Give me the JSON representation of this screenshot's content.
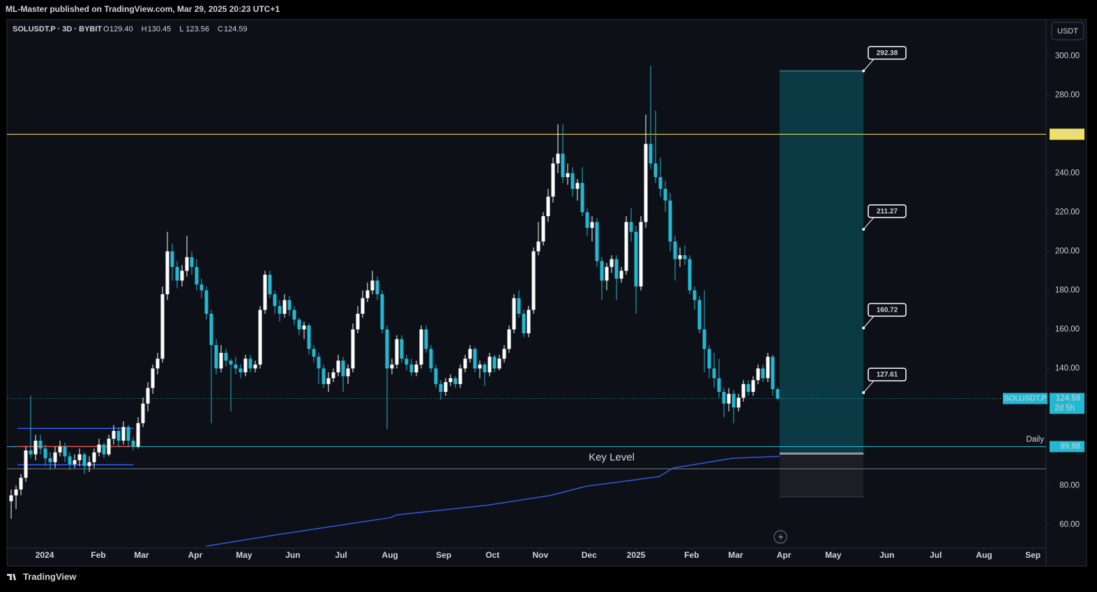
{
  "header": {
    "published": "ML-Master published on TradingView.com, Mar 29, 2025 20:23 UTC+1"
  },
  "footer": {
    "brand": "TradingView"
  },
  "chart_data": {
    "type": "candlestick",
    "symbol": "SOLUSDT.P · 3D · BYBIT",
    "currency": "USDT",
    "ohlc_legend": {
      "names": [
        "O",
        "H",
        "L",
        "C"
      ],
      "values": [
        129.4,
        130.45,
        123.56,
        124.59
      ],
      "value_labels": [
        "129.40",
        "130.45",
        "123.56",
        "124.59"
      ]
    },
    "up_color": "#ffffff",
    "down_color": "#22b8d1",
    "candles": [
      [
        72,
        78,
        63,
        75
      ],
      [
        75,
        80,
        68,
        78
      ],
      [
        78,
        86,
        75,
        84
      ],
      [
        84,
        100,
        82,
        98
      ],
      [
        98,
        126,
        94,
        96
      ],
      [
        96,
        106,
        93,
        103
      ],
      [
        103,
        106,
        96,
        99
      ],
      [
        99,
        101,
        90,
        94
      ],
      [
        94,
        97,
        88,
        92
      ],
      [
        92,
        100,
        89,
        97
      ],
      [
        97,
        103,
        95,
        100
      ],
      [
        100,
        102,
        92,
        95
      ],
      [
        95,
        97,
        88,
        91
      ],
      [
        91,
        96,
        89,
        93
      ],
      [
        93,
        99,
        90,
        96
      ],
      [
        96,
        97,
        86,
        90
      ],
      [
        90,
        95,
        87,
        92
      ],
      [
        92,
        99,
        89,
        97
      ],
      [
        97,
        104,
        95,
        101
      ],
      [
        101,
        102,
        94,
        96
      ],
      [
        96,
        106,
        95,
        104
      ],
      [
        104,
        111,
        101,
        108
      ],
      [
        108,
        110,
        100,
        103
      ],
      [
        103,
        113,
        101,
        110
      ],
      [
        110,
        111,
        100,
        103
      ],
      [
        103,
        105,
        98,
        100
      ],
      [
        100,
        115,
        99,
        112
      ],
      [
        112,
        125,
        110,
        122
      ],
      [
        122,
        133,
        118,
        130
      ],
      [
        130,
        142,
        127,
        140
      ],
      [
        140,
        148,
        137,
        145
      ],
      [
        145,
        182,
        143,
        178
      ],
      [
        178,
        210,
        175,
        200
      ],
      [
        200,
        204,
        185,
        192
      ],
      [
        192,
        195,
        181,
        185
      ],
      [
        185,
        193,
        182,
        190
      ],
      [
        190,
        208,
        187,
        197
      ],
      [
        197,
        200,
        188,
        192
      ],
      [
        192,
        196,
        180,
        183
      ],
      [
        183,
        186,
        176,
        180
      ],
      [
        180,
        182,
        165,
        168
      ],
      [
        168,
        170,
        112,
        152
      ],
      [
        152,
        155,
        137,
        140
      ],
      [
        140,
        152,
        138,
        148
      ],
      [
        148,
        150,
        141,
        144
      ],
      [
        144,
        145,
        118,
        142
      ],
      [
        142,
        146,
        137,
        140
      ],
      [
        140,
        142,
        135,
        138
      ],
      [
        138,
        147,
        136,
        145
      ],
      [
        145,
        147,
        138,
        140
      ],
      [
        140,
        144,
        138,
        142
      ],
      [
        142,
        172,
        140,
        170
      ],
      [
        170,
        190,
        168,
        188
      ],
      [
        188,
        190,
        176,
        178
      ],
      [
        178,
        180,
        168,
        172
      ],
      [
        172,
        175,
        164,
        168
      ],
      [
        168,
        178,
        166,
        175
      ],
      [
        175,
        177,
        167,
        170
      ],
      [
        170,
        172,
        162,
        165
      ],
      [
        165,
        166,
        157,
        160
      ],
      [
        160,
        164,
        155,
        162
      ],
      [
        162,
        163,
        147,
        150
      ],
      [
        150,
        152,
        143,
        146
      ],
      [
        146,
        148,
        132,
        140
      ],
      [
        140,
        142,
        130,
        132
      ],
      [
        132,
        138,
        128,
        135
      ],
      [
        135,
        140,
        133,
        138
      ],
      [
        138,
        147,
        136,
        144
      ],
      [
        144,
        146,
        128,
        136
      ],
      [
        136,
        142,
        132,
        140
      ],
      [
        140,
        163,
        138,
        160
      ],
      [
        160,
        172,
        158,
        168
      ],
      [
        168,
        180,
        166,
        176
      ],
      [
        176,
        184,
        174,
        180
      ],
      [
        180,
        190,
        178,
        185
      ],
      [
        185,
        187,
        175,
        178
      ],
      [
        178,
        180,
        158,
        160
      ],
      [
        160,
        162,
        109,
        140
      ],
      [
        140,
        145,
        137,
        142
      ],
      [
        142,
        157,
        140,
        155
      ],
      [
        155,
        157,
        143,
        145
      ],
      [
        145,
        147,
        139,
        142
      ],
      [
        142,
        145,
        136,
        138
      ],
      [
        138,
        144,
        136,
        142
      ],
      [
        142,
        162,
        140,
        160
      ],
      [
        160,
        162,
        148,
        150
      ],
      [
        150,
        152,
        138,
        140
      ],
      [
        140,
        142,
        130,
        132
      ],
      [
        132,
        134,
        124,
        128
      ],
      [
        128,
        135,
        126,
        133
      ],
      [
        133,
        137,
        131,
        135
      ],
      [
        135,
        136,
        130,
        132
      ],
      [
        132,
        142,
        130,
        140
      ],
      [
        140,
        147,
        138,
        145
      ],
      [
        145,
        152,
        143,
        150
      ],
      [
        150,
        151,
        138,
        140
      ],
      [
        140,
        144,
        135,
        142
      ],
      [
        142,
        143,
        131,
        138
      ],
      [
        138,
        148,
        136,
        146
      ],
      [
        146,
        147,
        138,
        140
      ],
      [
        140,
        147,
        139,
        145
      ],
      [
        145,
        152,
        143,
        150
      ],
      [
        150,
        162,
        148,
        160
      ],
      [
        160,
        178,
        158,
        176
      ],
      [
        176,
        180,
        166,
        168
      ],
      [
        168,
        170,
        156,
        158
      ],
      [
        158,
        172,
        156,
        170
      ],
      [
        170,
        202,
        168,
        200
      ],
      [
        200,
        215,
        198,
        205
      ],
      [
        205,
        220,
        203,
        218
      ],
      [
        218,
        232,
        215,
        228
      ],
      [
        228,
        248,
        225,
        245
      ],
      [
        245,
        265,
        240,
        250
      ],
      [
        250,
        265,
        235,
        238
      ],
      [
        238,
        245,
        234,
        240
      ],
      [
        240,
        243,
        228,
        232
      ],
      [
        232,
        237,
        226,
        235
      ],
      [
        235,
        243,
        218,
        220
      ],
      [
        220,
        222,
        208,
        212
      ],
      [
        212,
        218,
        205,
        215
      ],
      [
        215,
        217,
        192,
        195
      ],
      [
        195,
        197,
        175,
        185
      ],
      [
        185,
        194,
        180,
        192
      ],
      [
        192,
        198,
        189,
        196
      ],
      [
        196,
        198,
        175,
        186
      ],
      [
        186,
        192,
        184,
        190
      ],
      [
        190,
        218,
        188,
        215
      ],
      [
        215,
        222,
        205,
        210
      ],
      [
        210,
        213,
        168,
        182
      ],
      [
        182,
        218,
        180,
        215
      ],
      [
        215,
        270,
        212,
        255
      ],
      [
        255,
        295,
        242,
        245
      ],
      [
        245,
        272,
        235,
        238
      ],
      [
        238,
        248,
        228,
        232
      ],
      [
        232,
        236,
        220,
        226
      ],
      [
        226,
        230,
        200,
        205
      ],
      [
        205,
        208,
        185,
        196
      ],
      [
        196,
        202,
        192,
        198
      ],
      [
        198,
        203,
        193,
        196
      ],
      [
        196,
        198,
        178,
        180
      ],
      [
        180,
        182,
        170,
        175
      ],
      [
        175,
        177,
        158,
        160
      ],
      [
        160,
        180,
        138,
        150
      ],
      [
        150,
        152,
        135,
        140
      ],
      [
        140,
        148,
        130,
        135
      ],
      [
        135,
        145,
        125,
        128
      ],
      [
        128,
        130,
        115,
        122
      ],
      [
        122,
        130,
        118,
        127
      ],
      [
        127,
        129,
        112,
        120
      ],
      [
        120,
        127,
        118,
        125
      ],
      [
        125,
        134,
        123,
        132
      ],
      [
        132,
        134,
        126,
        128
      ],
      [
        128,
        136,
        126,
        134
      ],
      [
        134,
        142,
        132,
        140
      ],
      [
        140,
        142,
        133,
        135
      ],
      [
        135,
        148,
        133,
        146
      ],
      [
        146,
        147,
        126,
        129.4
      ],
      [
        129.4,
        130.45,
        123.56,
        124.59
      ]
    ],
    "xlim": [
      -0.86,
      212
    ],
    "xticks": [
      {
        "value": 6.86,
        "label": "2024"
      },
      {
        "value": 17.86,
        "label": "Feb"
      },
      {
        "value": 26.7,
        "label": "Mar"
      },
      {
        "value": 37.7,
        "label": "Apr"
      },
      {
        "value": 47.7,
        "label": "May"
      },
      {
        "value": 57.7,
        "label": "Jun"
      },
      {
        "value": 67.6,
        "label": "Jul"
      },
      {
        "value": 77.6,
        "label": "Aug"
      },
      {
        "value": 88.6,
        "label": "Sep"
      },
      {
        "value": 98.6,
        "label": "Oct"
      },
      {
        "value": 108.4,
        "label": "Nov"
      },
      {
        "value": 118.4,
        "label": "Dec"
      },
      {
        "value": 128,
        "label": "2025"
      },
      {
        "value": 139.4,
        "label": "Feb"
      },
      {
        "value": 148.4,
        "label": "Mar"
      },
      {
        "value": 158.3,
        "label": "Apr"
      },
      {
        "value": 168.4,
        "label": "May"
      },
      {
        "value": 179.4,
        "label": "Jun"
      },
      {
        "value": 189.4,
        "label": "Jul"
      },
      {
        "value": 199.3,
        "label": "Aug"
      },
      {
        "value": 209.3,
        "label": "Sep"
      }
    ],
    "ylim": [
      48,
      318
    ],
    "yticks": [
      {
        "value": 60,
        "label": "60.00"
      },
      {
        "value": 80,
        "label": "80.00"
      },
      {
        "value": 140,
        "label": "140.00"
      },
      {
        "value": 160,
        "label": "160.00"
      },
      {
        "value": 180,
        "label": "180.00"
      },
      {
        "value": 200,
        "label": "200.00"
      },
      {
        "value": 220,
        "label": "220.00"
      },
      {
        "value": 240,
        "label": "240.00"
      },
      {
        "value": 280,
        "label": "280.00"
      },
      {
        "value": 300,
        "label": "300.00"
      }
    ],
    "ma": {
      "color": "#2f5bd8",
      "x": [
        39.9,
        54.9,
        77.7,
        79,
        97.7,
        110.6,
        117.7,
        132.7,
        135.6,
        147.7,
        157.4
      ],
      "values": [
        49,
        55,
        63.6,
        65,
        70,
        75,
        79.6,
        84.6,
        89,
        94,
        95
      ]
    },
    "levels": [
      {
        "value": 259.96,
        "color": "#f2e15a"
      },
      {
        "value": 99.98,
        "color": "#22b8d1",
        "name": "Daily"
      },
      {
        "value": 88.6,
        "color": "#787b86"
      }
    ],
    "zone_label": "Key Level",
    "range_box": {
      "x": [
        1.3,
        25.1
      ],
      "lines": [
        {
          "value": 109.3,
          "color": "#2f5bff"
        },
        {
          "value": 100,
          "color": "#e0524a"
        },
        {
          "value": 90.7,
          "color": "#2f5bff"
        }
      ]
    },
    "current": {
      "name": "SOLUSDT.P",
      "value": 124.59,
      "countdown": "2d 5h"
    },
    "projection": {
      "x": [
        157.4,
        174.6
      ],
      "top": 292.38,
      "bottom": 96.4,
      "stop": 74.3,
      "targets": [
        292.38,
        211.27,
        160.72,
        127.61
      ]
    }
  }
}
